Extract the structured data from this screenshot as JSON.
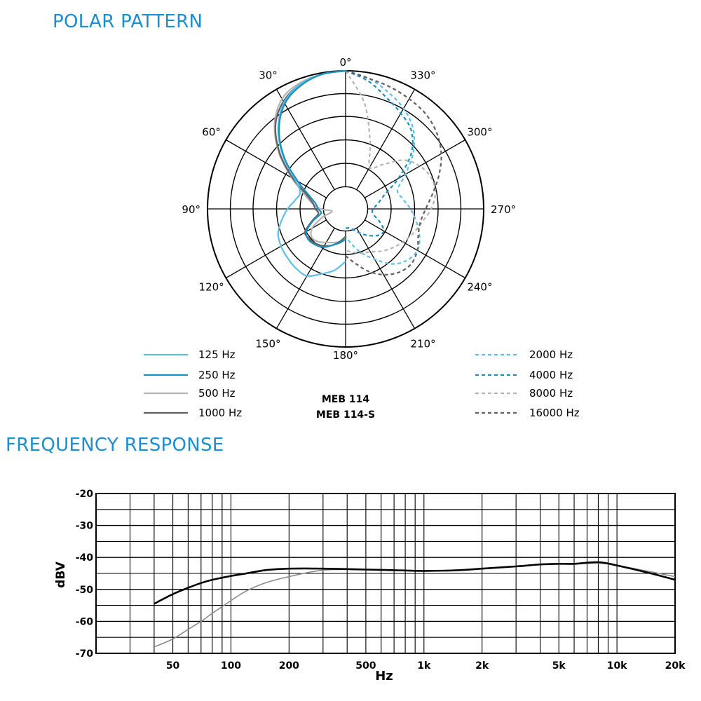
{
  "titles": {
    "polar": "POLAR PATTERN",
    "frequency": "FREQUENCY RESPONSE"
  },
  "colors": {
    "title_blue": "#1b8fcf",
    "light_blue": "#5bc0e6",
    "dark_blue": "#1a8fc0",
    "light_gray": "#b4b4b4",
    "dark_gray": "#606060"
  },
  "chart_data": [
    {
      "type": "polar",
      "title": "POLAR PATTERN",
      "model_labels": [
        "MEB 114",
        "MEB 114-S"
      ],
      "angle_labels": [
        "0°",
        "30°",
        "60°",
        "90°",
        "120°",
        "150°",
        "180°",
        "210°",
        "240°",
        "270°",
        "300°",
        "330°"
      ],
      "series": [
        {
          "name": "125 Hz",
          "color": "#5bc0e6",
          "style": "solid",
          "side": "left",
          "r": [
            1.0,
            0.99,
            0.96,
            0.89,
            0.76,
            0.59,
            0.42,
            0.35,
            0.37,
            0.42,
            0.47,
            0.52,
            0.54,
            0.55,
            0.56,
            0.56,
            0.5,
            0.45,
            0.38
          ]
        },
        {
          "name": "250 Hz",
          "color": "#1a8fc0",
          "style": "solid",
          "side": "left",
          "r": [
            1.0,
            0.99,
            0.95,
            0.88,
            0.75,
            0.58,
            0.4,
            0.28,
            0.22,
            0.2,
            0.18,
            0.25,
            0.33,
            0.35,
            0.34,
            0.32,
            0.28,
            0.25,
            0.22
          ]
        },
        {
          "name": "500 Hz",
          "color": "#b4b4b4",
          "style": "solid",
          "side": "left",
          "r": [
            1.0,
            0.99,
            0.97,
            0.92,
            0.8,
            0.63,
            0.45,
            0.32,
            0.25,
            0.18,
            0.1,
            0.18,
            0.28,
            0.32,
            0.31,
            0.28,
            0.26,
            0.24,
            0.2
          ]
        },
        {
          "name": "1000 Hz",
          "color": "#606060",
          "style": "solid",
          "side": "left",
          "r": [
            1.0,
            0.99,
            0.96,
            0.9,
            0.79,
            0.62,
            0.44,
            0.3,
            0.24,
            0.22,
            0.2,
            0.26,
            0.34,
            0.34,
            0.33,
            0.31,
            0.28,
            0.24,
            0.2
          ]
        },
        {
          "name": "2000 Hz",
          "color": "#5bc0e6",
          "style": "dashed",
          "side": "right",
          "r": [
            1.0,
            0.96,
            0.9,
            0.84,
            0.76,
            0.64,
            0.5,
            0.4,
            0.42,
            0.47,
            0.52,
            0.57,
            0.6,
            0.58,
            0.52,
            0.42,
            0.34,
            0.26,
            0.2
          ]
        },
        {
          "name": "4000 Hz",
          "color": "#1a8fc0",
          "style": "dashed",
          "side": "right",
          "r": [
            1.0,
            0.94,
            0.86,
            0.8,
            0.74,
            0.62,
            0.44,
            0.3,
            0.24,
            0.2,
            0.2,
            0.26,
            0.32,
            0.3,
            0.25,
            0.2,
            0.16,
            0.14,
            0.14
          ]
        },
        {
          "name": "8000 Hz",
          "color": "#b4b4b4",
          "style": "dashed",
          "side": "right",
          "r": [
            1.0,
            0.78,
            0.52,
            0.35,
            0.42,
            0.55,
            0.62,
            0.66,
            0.66,
            0.62,
            0.56,
            0.52,
            0.48,
            0.44,
            0.4,
            0.36,
            0.34,
            0.32,
            0.3
          ]
        },
        {
          "name": "16000 Hz",
          "color": "#606060",
          "style": "dashed",
          "side": "right",
          "r": [
            1.0,
            0.96,
            0.94,
            0.92,
            0.9,
            0.86,
            0.8,
            0.72,
            0.64,
            0.58,
            0.55,
            0.56,
            0.6,
            0.62,
            0.6,
            0.55,
            0.48,
            0.4,
            0.34
          ]
        }
      ]
    },
    {
      "type": "line",
      "title": "FREQUENCY RESPONSE",
      "xlabel": "Hz",
      "ylabel": "dBV",
      "xscale": "log",
      "xlim": [
        20,
        20000
      ],
      "ylim": [
        -70,
        -20
      ],
      "x_ticks": [
        50,
        100,
        200,
        500,
        1000,
        2000,
        5000,
        10000,
        20000
      ],
      "x_tick_labels": [
        "50",
        "100",
        "200",
        "500",
        "1k",
        "2k",
        "5k",
        "10k",
        "20k"
      ],
      "y_ticks": [
        -20,
        -30,
        -40,
        -50,
        -60,
        -70
      ],
      "y_tick_labels": [
        "-20",
        "-30",
        "-40",
        "-50",
        "-60",
        "-70"
      ],
      "grid": true,
      "series": [
        {
          "color": "#8a8a8a",
          "width": 1.6,
          "x": [
            40,
            50,
            60,
            70,
            80,
            100,
            120,
            150,
            200,
            300,
            500,
            700,
            1000,
            1500,
            2000,
            3000,
            4000,
            5000,
            6000,
            8000,
            10000,
            15000,
            20000
          ],
          "y": [
            -68,
            -65.5,
            -62.5,
            -60,
            -57.5,
            -53.5,
            -50.5,
            -48,
            -46,
            -44,
            -43.8,
            -44,
            -44.2,
            -44,
            -43.5,
            -42.8,
            -42.2,
            -42,
            -42,
            -41.8,
            -42.5,
            -44.5,
            -46
          ]
        },
        {
          "color": "#000000",
          "width": 2.6,
          "x": [
            40,
            50,
            60,
            70,
            80,
            100,
            120,
            150,
            200,
            300,
            500,
            700,
            1000,
            1500,
            2000,
            3000,
            4000,
            5000,
            6000,
            8000,
            10000,
            15000,
            20000
          ],
          "y": [
            -54.5,
            -51.5,
            -49.5,
            -48,
            -47,
            -45.8,
            -45,
            -44,
            -43.5,
            -43.5,
            -43.8,
            -44,
            -44.2,
            -44,
            -43.5,
            -42.8,
            -42.2,
            -42,
            -42,
            -41.5,
            -42.5,
            -45,
            -47
          ]
        }
      ]
    }
  ]
}
